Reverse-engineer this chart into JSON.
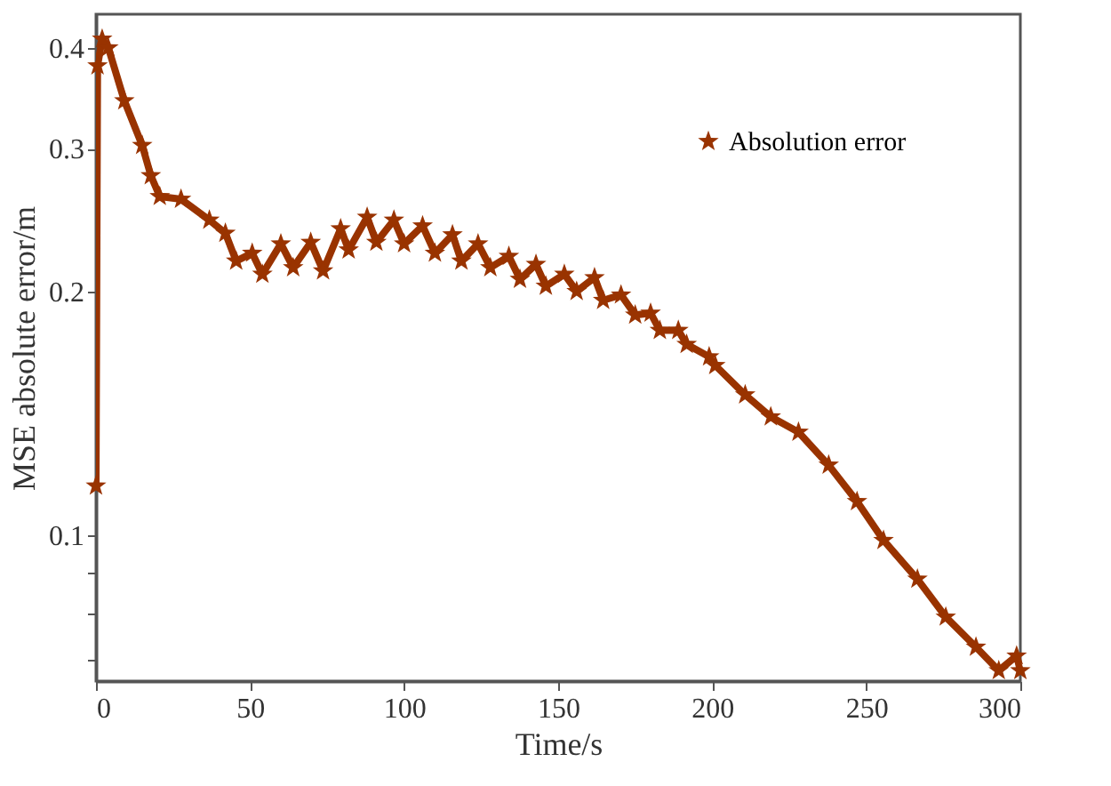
{
  "chart_data": {
    "type": "line",
    "xlabel": "Time/s",
    "ylabel": "MSE absolute error/m",
    "log": "y",
    "xlim": [
      0,
      300
    ],
    "xticks": [
      0,
      50,
      100,
      150,
      200,
      250,
      300
    ],
    "ylim": [
      0.066,
      0.44
    ],
    "yticks": [
      {
        "value": 0.07,
        "label": null
      },
      {
        "value": 0.08,
        "label": null
      },
      {
        "value": 0.09,
        "label": null
      },
      0.1,
      0.2,
      0.3,
      0.4
    ],
    "grid": false,
    "legend": "top right",
    "marker": "star",
    "line_style": "solid",
    "series": [
      {
        "name": "Absolution error",
        "color": "#993300",
        "x": [
          0,
          0.5,
          2,
          4,
          9.2,
          15,
          17.8,
          20.7,
          27.6,
          36.8,
          42,
          45.5,
          50.7,
          54,
          60,
          64,
          69.7,
          73.7,
          79.4,
          82,
          88,
          91,
          96.7,
          100,
          106,
          110,
          115.7,
          118.6,
          124,
          128,
          134,
          137.6,
          142.8,
          146,
          152,
          156,
          161.8,
          164.6,
          170.4,
          175,
          180,
          183,
          189,
          191.7,
          199,
          201,
          210.7,
          219,
          228,
          237.8,
          247,
          255.6,
          266.6,
          275.8,
          285.6,
          293,
          298.8,
          300
        ],
        "values": [
          0.115,
          0.38,
          0.41,
          0.4,
          0.344,
          0.303,
          0.278,
          0.262,
          0.26,
          0.245,
          0.236,
          0.218,
          0.223,
          0.21,
          0.229,
          0.214,
          0.23,
          0.212,
          0.239,
          0.225,
          0.247,
          0.23,
          0.245,
          0.229,
          0.241,
          0.223,
          0.235,
          0.218,
          0.229,
          0.214,
          0.221,
          0.207,
          0.216,
          0.203,
          0.21,
          0.2,
          0.208,
          0.195,
          0.198,
          0.187,
          0.188,
          0.179,
          0.179,
          0.172,
          0.166,
          0.162,
          0.149,
          0.14,
          0.134,
          0.122,
          0.11,
          0.0985,
          0.0882,
          0.0792,
          0.0727,
          0.068,
          0.0709,
          0.068
        ]
      }
    ]
  }
}
